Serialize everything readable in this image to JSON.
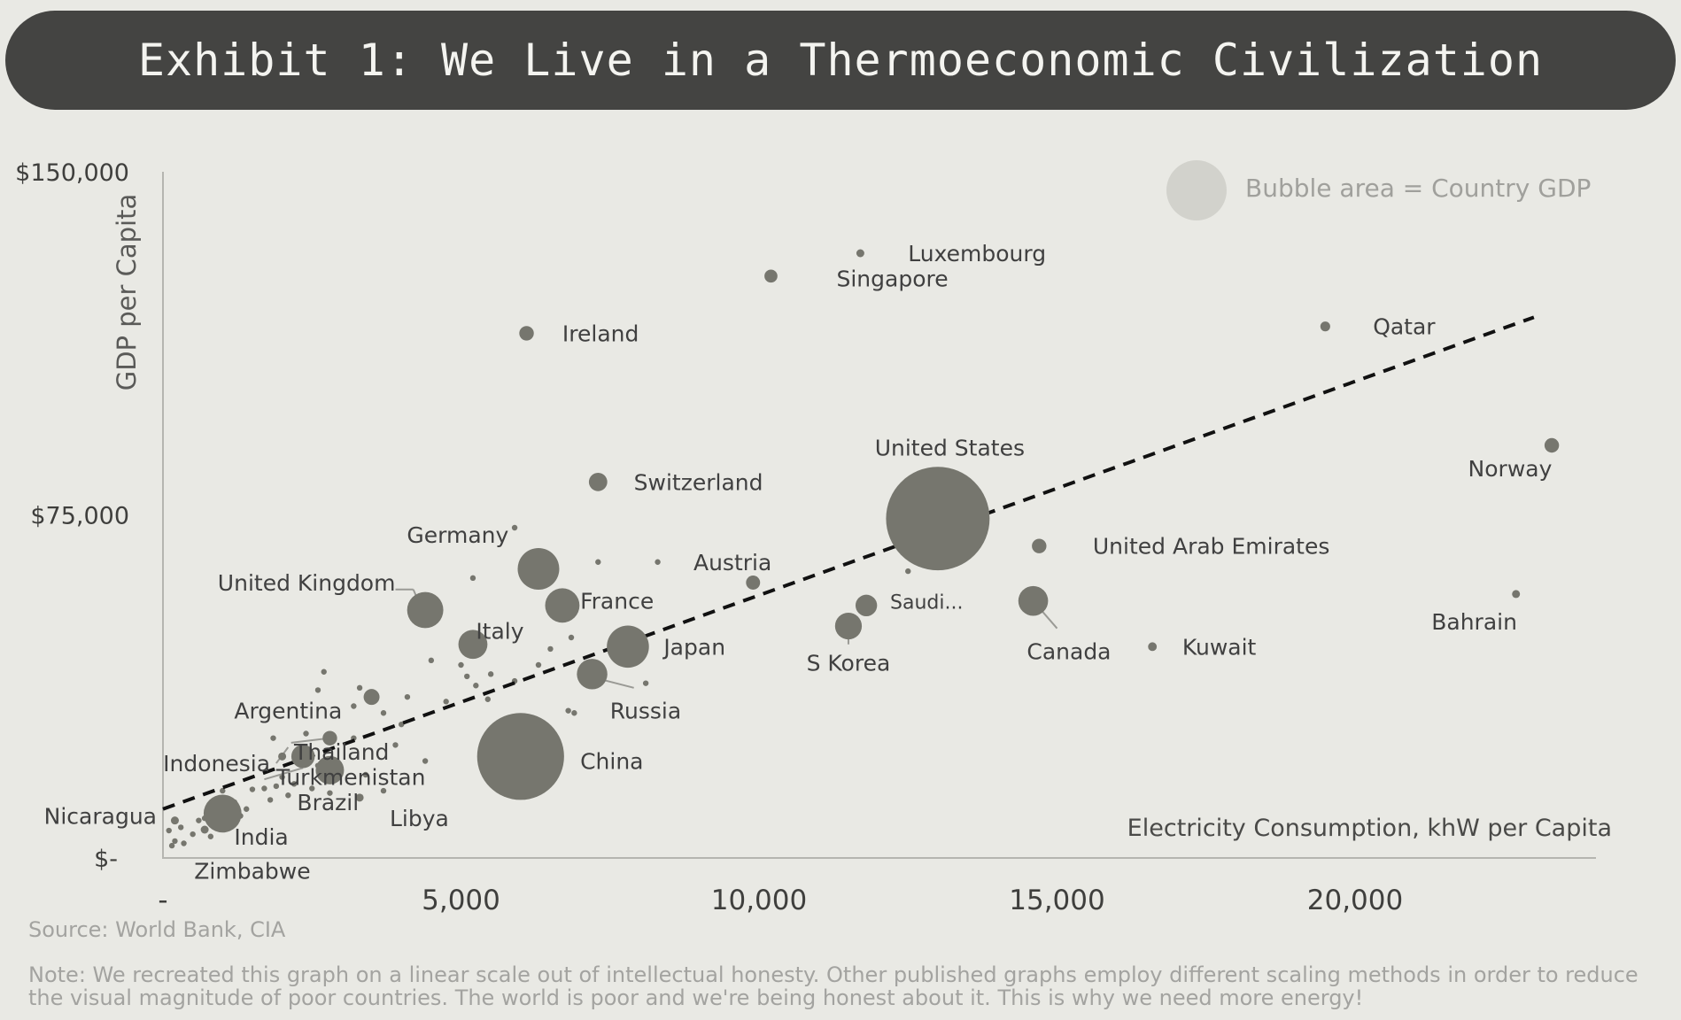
{
  "title": "Exhibit 1: We Live in a Thermoeconomic Civilization",
  "source": "Source: World Bank, CIA",
  "note": "Note: We recreated this graph on a linear scale out of intellectual honesty. Other published graphs employ different scaling methods in order to reduce the visual magnitude of poor countries. The world is poor and we're being honest about it. This is why we need more energy!",
  "colors": {
    "background": "#e9e9e4",
    "banner": "#444442",
    "bubble": "#76766e",
    "axis": "#b5b5b0",
    "label": "#404040",
    "legend": "#a0a09c"
  },
  "chart_data": {
    "type": "scatter",
    "xlabel": "Electricity Consumption, khW per Capita",
    "ylabel": "GDP per Capita",
    "xlim": [
      0,
      24000
    ],
    "ylim": [
      0,
      150000
    ],
    "x_ticks": [
      {
        "value": 0,
        "label": "-"
      },
      {
        "value": 5000,
        "label": "5,000"
      },
      {
        "value": 10000,
        "label": "10,000"
      },
      {
        "value": 15000,
        "label": "15,000"
      },
      {
        "value": 20000,
        "label": "20,000"
      }
    ],
    "y_ticks": [
      {
        "value": 0,
        "label": "$-"
      },
      {
        "value": 75000,
        "label": "$75,000"
      },
      {
        "value": 150000,
        "label": "$150,000"
      }
    ],
    "legend": {
      "text": "Bubble area = Country GDP",
      "position": "top-right"
    },
    "trendline": {
      "style": "dashed",
      "points": [
        [
          0,
          10500
        ],
        [
          23000,
          118000
        ]
      ]
    },
    "countries": [
      {
        "name": "Luxembourg",
        "x": 11700,
        "y": 132000,
        "gdp": 0.08
      },
      {
        "name": "Singapore",
        "x": 10200,
        "y": 127000,
        "gdp": 0.4
      },
      {
        "name": "Ireland",
        "x": 6100,
        "y": 114500,
        "gdp": 0.5
      },
      {
        "name": "Qatar",
        "x": 19500,
        "y": 116000,
        "gdp": 0.23
      },
      {
        "name": "Norway",
        "x": 23300,
        "y": 90000,
        "gdp": 0.5
      },
      {
        "name": "United States",
        "x": 13000,
        "y": 74000,
        "gdp": 25.4
      },
      {
        "name": "Switzerland",
        "x": 7300,
        "y": 82000,
        "gdp": 0.8
      },
      {
        "name": "United Arab Emirates",
        "x": 14700,
        "y": 68000,
        "gdp": 0.5
      },
      {
        "name": "Austria",
        "x": 9900,
        "y": 60000,
        "gdp": 0.47
      },
      {
        "name": "Germany",
        "x": 6300,
        "y": 63000,
        "gdp": 4.1
      },
      {
        "name": "France",
        "x": 6700,
        "y": 55000,
        "gdp": 2.8
      },
      {
        "name": "United Kingdom",
        "x": 4400,
        "y": 54000,
        "gdp": 3.1
      },
      {
        "name": "Italy",
        "x": 5200,
        "y": 46500,
        "gdp": 2.0
      },
      {
        "name": "Japan",
        "x": 7800,
        "y": 46000,
        "gdp": 4.2
      },
      {
        "name": "Saudi Arabia",
        "x": 11800,
        "y": 55000,
        "gdp": 1.1
      },
      {
        "name": "S Korea",
        "x": 11500,
        "y": 50500,
        "gdp": 1.7
      },
      {
        "name": "Canada",
        "x": 14600,
        "y": 56000,
        "gdp": 2.1
      },
      {
        "name": "Kuwait",
        "x": 16600,
        "y": 46000,
        "gdp": 0.18
      },
      {
        "name": "Bahrain",
        "x": 22700,
        "y": 57500,
        "gdp": 0.04
      },
      {
        "name": "Russia",
        "x": 7200,
        "y": 40000,
        "gdp": 2.2
      },
      {
        "name": "China",
        "x": 6000,
        "y": 22000,
        "gdp": 17.9
      },
      {
        "name": "Argentina",
        "x": 3500,
        "y": 35000,
        "gdp": 0.6
      },
      {
        "name": "Thailand",
        "x": 2800,
        "y": 26000,
        "gdp": 0.5
      },
      {
        "name": "Turkmenistan",
        "x": 2000,
        "y": 22000,
        "gdp": 0.08
      },
      {
        "name": "Indonesia",
        "x": 2350,
        "y": 22000,
        "gdp": 1.3
      },
      {
        "name": "Brazil",
        "x": 2800,
        "y": 19000,
        "gdp": 1.9
      },
      {
        "name": "Libya",
        "x": 3300,
        "y": 13000,
        "gdp": 0.06
      },
      {
        "name": "Nicaragua",
        "x": 200,
        "y": 8000,
        "gdp": 0.015
      },
      {
        "name": "India",
        "x": 1000,
        "y": 9500,
        "gdp": 3.4
      },
      {
        "name": "Zimbabwe",
        "x": 700,
        "y": 6000,
        "gdp": 0.02
      }
    ],
    "labels": [
      {
        "text": "Luxembourg",
        "x": 12500,
        "y": 132000,
        "anchor": "start"
      },
      {
        "text": "Singapore",
        "x": 11300,
        "y": 126500,
        "anchor": "start"
      },
      {
        "text": "Ireland",
        "x": 6700,
        "y": 114500,
        "anchor": "start"
      },
      {
        "text": "Qatar",
        "x": 20300,
        "y": 116000,
        "anchor": "start"
      },
      {
        "text": "Norway",
        "x": 22600,
        "y": 85000,
        "anchor": "middle"
      },
      {
        "text": "United States",
        "x": 13200,
        "y": 89500,
        "anchor": "middle"
      },
      {
        "text": "Switzerland",
        "x": 7900,
        "y": 82000,
        "anchor": "start"
      },
      {
        "text": "United Arab Emirates",
        "x": 15600,
        "y": 68000,
        "anchor": "start"
      },
      {
        "text": "Austria",
        "x": 8900,
        "y": 64500,
        "anchor": "start"
      },
      {
        "text": "Germany",
        "x": 5800,
        "y": 70500,
        "anchor": "end"
      },
      {
        "text": "France",
        "x": 7000,
        "y": 56000,
        "anchor": "start"
      },
      {
        "text": "United Kingdom",
        "x": 3900,
        "y": 60000,
        "anchor": "end"
      },
      {
        "text": "Italy",
        "x": 5250,
        "y": 49500,
        "anchor": "start"
      },
      {
        "text": "Japan",
        "x": 8400,
        "y": 46000,
        "anchor": "start"
      },
      {
        "text": "Saudi...",
        "x": 12200,
        "y": 56000,
        "anchor": "start"
      },
      {
        "text": "S Korea",
        "x": 11500,
        "y": 42500,
        "anchor": "middle"
      },
      {
        "text": "Canada",
        "x": 15200,
        "y": 45000,
        "anchor": "middle"
      },
      {
        "text": "Kuwait",
        "x": 17100,
        "y": 46000,
        "anchor": "start"
      },
      {
        "text": "Bahrain",
        "x": 22000,
        "y": 51500,
        "anchor": "middle"
      },
      {
        "text": "Russia",
        "x": 7500,
        "y": 32000,
        "anchor": "start"
      },
      {
        "text": "China",
        "x": 7000,
        "y": 21000,
        "anchor": "start"
      },
      {
        "text": "Argentina",
        "x": 2100,
        "y": 32000,
        "anchor": "middle"
      },
      {
        "text": "Thailand",
        "x": 2200,
        "y": 23000,
        "anchor": "start"
      },
      {
        "text": "Turkmenistan",
        "x": 1900,
        "y": 17500,
        "anchor": "start"
      },
      {
        "text": "Indonesia",
        "x": 900,
        "y": 20500,
        "anchor": "middle"
      },
      {
        "text": "Brazil",
        "x": 2250,
        "y": 12000,
        "anchor": "start"
      },
      {
        "text": "Libya",
        "x": 4300,
        "y": 8500,
        "anchor": "middle"
      },
      {
        "text": "Nicaragua",
        "x": -1050,
        "y": 9000,
        "anchor": "middle"
      },
      {
        "text": "India",
        "x": 1650,
        "y": 4500,
        "anchor": "middle"
      },
      {
        "text": "Zimbabwe",
        "x": 1500,
        "y": -3000,
        "anchor": "middle"
      }
    ],
    "leaders": [
      {
        "from": [
          13200,
          85000
        ],
        "to": [
          13000,
          75500
        ]
      },
      {
        "from": [
          3900,
          58500
        ],
        "to": [
          4200,
          58500
        ]
      },
      {
        "from": [
          4200,
          58500
        ],
        "to": [
          4300,
          55500
        ]
      },
      {
        "from": [
          7000,
          40000
        ],
        "to": [
          7900,
          37000
        ]
      },
      {
        "from": [
          6000,
          22000
        ],
        "to": [
          6700,
          21000
        ]
      },
      {
        "from": [
          2800,
          26000
        ],
        "to": [
          2150,
          25000
        ]
      },
      {
        "from": [
          2100,
          24000
        ],
        "to": [
          1900,
          20500
        ]
      },
      {
        "from": [
          1700,
          17000
        ],
        "to": [
          2350,
          19500
        ]
      },
      {
        "from": [
          14600,
          56000
        ],
        "to": [
          15000,
          50000
        ]
      },
      {
        "from": [
          11500,
          50500
        ],
        "to": [
          11500,
          46500
        ]
      }
    ],
    "minor_points": [
      [
        5900,
        72000
      ],
      [
        7300,
        64500
      ],
      [
        8300,
        64500
      ],
      [
        12500,
        62500
      ],
      [
        6850,
        48000
      ],
      [
        5100,
        39500
      ],
      [
        5000,
        42000
      ],
      [
        5250,
        37500
      ],
      [
        4750,
        34000
      ],
      [
        5450,
        34500
      ],
      [
        5500,
        40000
      ],
      [
        4100,
        35000
      ],
      [
        3700,
        31500
      ],
      [
        2700,
        40500
      ],
      [
        3200,
        26000
      ],
      [
        4000,
        29000
      ],
      [
        3300,
        37000
      ],
      [
        2600,
        36500
      ],
      [
        4500,
        52000
      ],
      [
        5200,
        61000
      ],
      [
        6300,
        42000
      ],
      [
        7600,
        45000
      ],
      [
        8100,
        38000
      ],
      [
        6900,
        31500
      ],
      [
        4500,
        43000
      ],
      [
        1900,
        15500
      ],
      [
        1500,
        14800
      ],
      [
        1700,
        15000
      ],
      [
        1200,
        12000
      ],
      [
        1400,
        10500
      ],
      [
        1800,
        12500
      ],
      [
        2200,
        16000
      ],
      [
        2800,
        14000
      ],
      [
        2500,
        15000
      ],
      [
        600,
        8000
      ],
      [
        300,
        6500
      ],
      [
        500,
        5000
      ],
      [
        800,
        4500
      ],
      [
        100,
        5800
      ],
      [
        200,
        3500
      ],
      [
        350,
        3000
      ],
      [
        150,
        2500
      ],
      [
        700,
        8500
      ],
      [
        900,
        6500
      ],
      [
        1100,
        7500
      ],
      [
        1300,
        9000
      ],
      [
        2000,
        17500
      ],
      [
        1000,
        14500
      ],
      [
        2100,
        13500
      ],
      [
        3400,
        18000
      ],
      [
        3700,
        14500
      ],
      [
        3200,
        33000
      ],
      [
        2400,
        27000
      ],
      [
        1850,
        26000
      ],
      [
        4400,
        21000
      ],
      [
        6500,
        45500
      ],
      [
        6800,
        32000
      ],
      [
        5900,
        38500
      ],
      [
        3900,
        24500
      ],
      [
        2600,
        20000
      ]
    ]
  }
}
